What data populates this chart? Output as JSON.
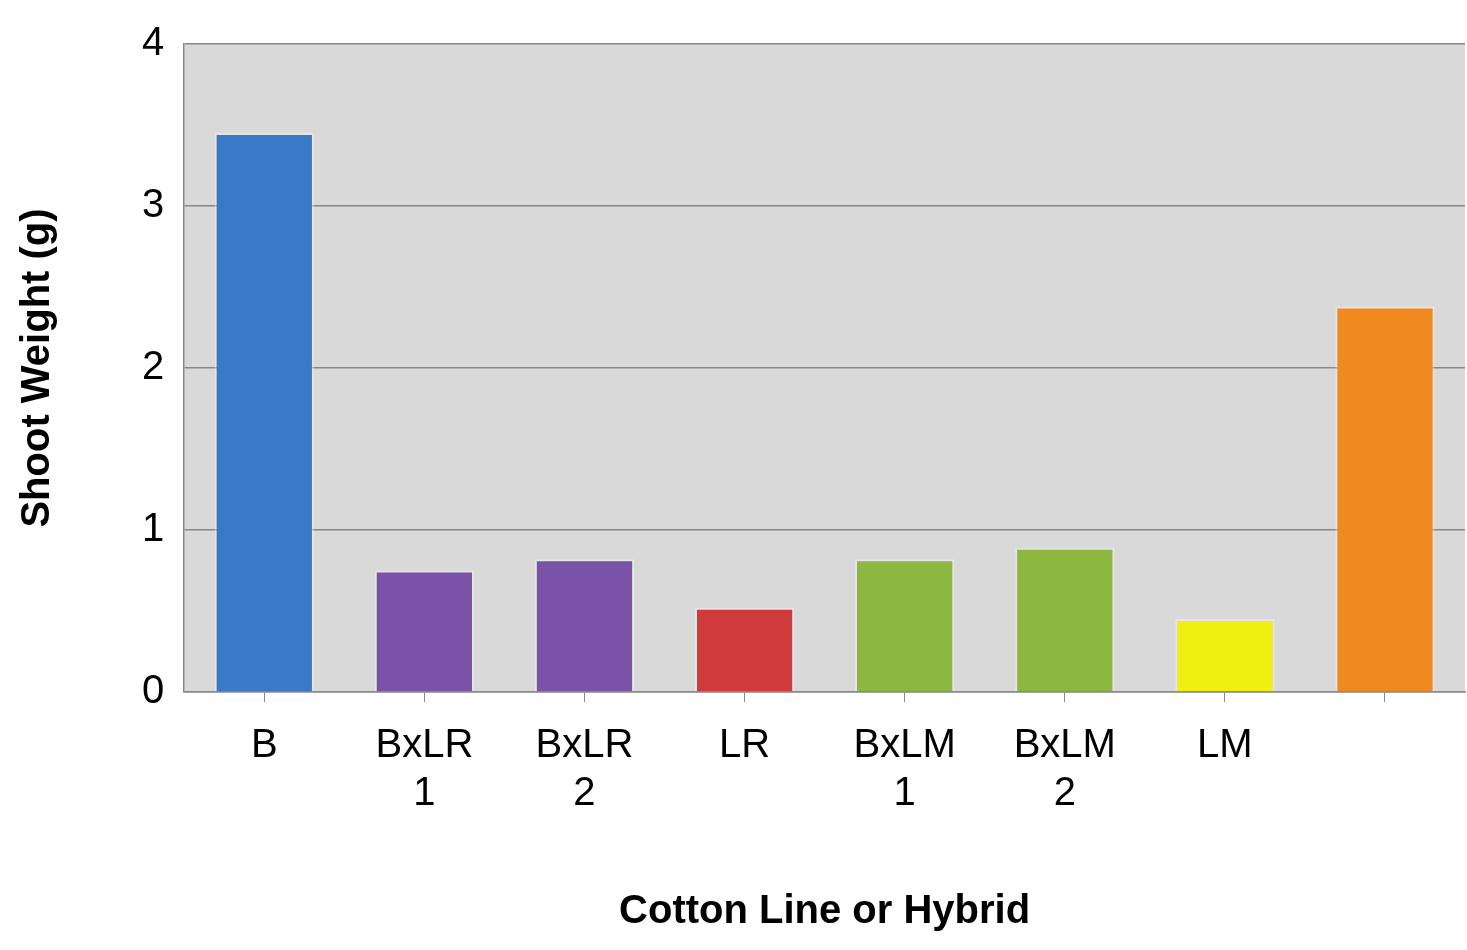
{
  "chart_data": {
    "type": "bar",
    "xlabel": "Cotton Line or Hybrid",
    "ylabel": "Shoot Weight (g)",
    "categories": [
      "B",
      "BxLR 1",
      "BxLR 2",
      "LR",
      "BxLM 1",
      "BxLM 2",
      "LM",
      null
    ],
    "values": [
      3.45,
      0.75,
      0.82,
      0.52,
      0.82,
      0.89,
      0.45,
      2.38
    ],
    "colors": [
      "#3a78c8",
      "#7a52a8",
      "#7a52a8",
      "#d03a3a",
      "#8cb840",
      "#8cb840",
      "#f0f010",
      "#f08a20"
    ],
    "ylim": [
      0,
      4
    ],
    "yticks": [
      0,
      1,
      2,
      3,
      4
    ],
    "grid": "y",
    "legend": false
  }
}
